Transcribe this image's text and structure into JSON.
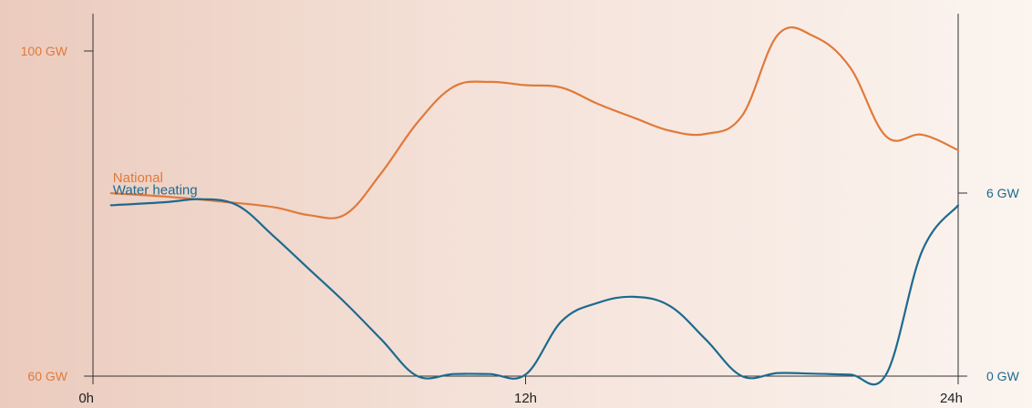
{
  "chart_data": {
    "type": "line",
    "title": "",
    "x": {
      "domain": [
        0,
        24
      ],
      "ticks": [
        {
          "value": 0,
          "label": "0h"
        },
        {
          "value": 12,
          "label": "12h"
        },
        {
          "value": 24,
          "label": "24h"
        }
      ]
    },
    "y_left": {
      "domain": [
        60,
        100
      ],
      "ticks": [
        {
          "value": 60,
          "label": "60 GW"
        },
        {
          "value": 100,
          "label": "100 GW"
        }
      ],
      "color": "#e07a3a"
    },
    "y_right": {
      "domain": [
        0,
        6
      ],
      "ticks": [
        {
          "value": 0,
          "label": "0 GW"
        },
        {
          "value": 6,
          "label": "6 GW"
        }
      ],
      "color": "#1d6a8f"
    },
    "grid": false,
    "series": [
      {
        "name": "National",
        "axis": "left",
        "color": "#e07a3a",
        "x": [
          0.5,
          2.0,
          3.5,
          5.0,
          6.0,
          7.0,
          8.0,
          9.0,
          10.0,
          11.0,
          12.0,
          13.0,
          14.0,
          15.0,
          16.0,
          17.0,
          18.0,
          19.0,
          20.0,
          21.0,
          22.0,
          23.0,
          24.0
        ],
        "values": [
          82.5,
          82.1,
          81.5,
          80.8,
          79.8,
          79.9,
          85.0,
          91.2,
          95.6,
          96.2,
          95.8,
          95.5,
          93.5,
          91.8,
          90.2,
          89.8,
          92.0,
          102.0,
          101.8,
          98.0,
          89.5,
          89.7,
          87.8
        ]
      },
      {
        "name": "Water heating",
        "axis": "right",
        "color": "#1d6a8f",
        "x": [
          0.5,
          2.0,
          3.0,
          4.0,
          5.0,
          6.0,
          7.0,
          8.0,
          9.0,
          10.0,
          11.0,
          12.0,
          13.0,
          14.0,
          15.0,
          16.0,
          17.0,
          18.0,
          19.0,
          20.0,
          21.0,
          22.0,
          23.0,
          24.0
        ],
        "values": [
          5.6,
          5.7,
          5.8,
          5.6,
          4.6,
          3.5,
          2.4,
          1.2,
          0.0,
          0.07,
          0.07,
          0.05,
          1.8,
          2.4,
          2.6,
          2.3,
          1.2,
          0.0,
          0.1,
          0.08,
          0.05,
          0.05,
          4.1,
          5.6
        ]
      }
    ],
    "labels": [
      {
        "text": "National",
        "series": 0,
        "x": 0.5,
        "value": 82.5
      },
      {
        "text": "Water heating",
        "series": 1,
        "x": 0.5,
        "value": 5.6
      }
    ]
  }
}
